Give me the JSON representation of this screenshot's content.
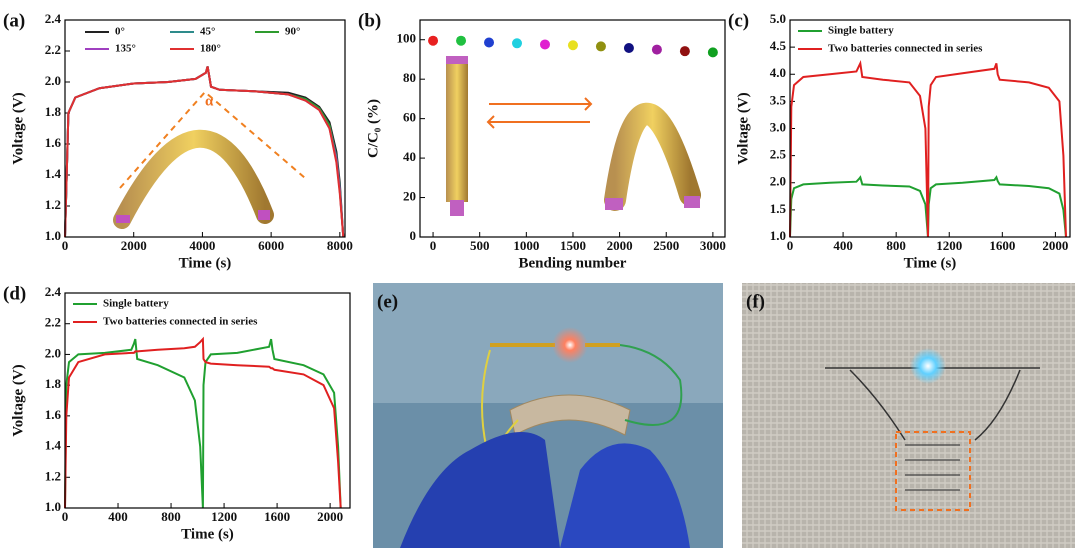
{
  "chart_data": [
    {
      "type": "line",
      "panel_label": "(a)",
      "xlabel": "Time (s)",
      "ylabel": "Voltage (V)",
      "annotation": "α",
      "x": [
        0,
        100,
        300,
        1000,
        2000,
        3000,
        3800,
        4100,
        4150,
        4250,
        4500,
        5500,
        6500,
        7000,
        7400,
        7700,
        7900,
        8000,
        8100
      ],
      "series": [
        {
          "name": "0°",
          "color": "#222222",
          "values": [
            1.0,
            1.8,
            1.9,
            1.96,
            1.99,
            2.0,
            2.02,
            2.06,
            2.1,
            1.97,
            1.95,
            1.94,
            1.93,
            1.9,
            1.84,
            1.74,
            1.55,
            1.35,
            1.0
          ]
        },
        {
          "name": "45°",
          "color": "#2e8b8b",
          "values": [
            1.0,
            1.8,
            1.9,
            1.96,
            1.99,
            2.0,
            2.02,
            2.06,
            2.1,
            1.97,
            1.95,
            1.94,
            1.92,
            1.89,
            1.83,
            1.72,
            1.52,
            1.32,
            1.0
          ]
        },
        {
          "name": "90°",
          "color": "#2e9b2e",
          "values": [
            1.0,
            1.8,
            1.9,
            1.96,
            1.99,
            2.0,
            2.02,
            2.06,
            2.1,
            1.97,
            1.95,
            1.94,
            1.92,
            1.89,
            1.83,
            1.72,
            1.5,
            1.3,
            1.0
          ]
        },
        {
          "name": "135°",
          "color": "#a040c0",
          "values": [
            1.0,
            1.8,
            1.9,
            1.96,
            1.99,
            2.0,
            2.02,
            2.06,
            2.1,
            1.97,
            1.95,
            1.94,
            1.92,
            1.88,
            1.82,
            1.7,
            1.5,
            1.3,
            1.0
          ]
        },
        {
          "name": "180°",
          "color": "#e03030",
          "values": [
            1.0,
            1.8,
            1.9,
            1.96,
            1.99,
            2.0,
            2.02,
            2.06,
            2.1,
            1.97,
            1.95,
            1.94,
            1.92,
            1.88,
            1.82,
            1.7,
            1.48,
            1.28,
            1.0
          ]
        }
      ],
      "xlim": [
        0,
        8150
      ],
      "xticks": [
        0,
        2000,
        4000,
        6000,
        8000
      ],
      "ylim": [
        1.0,
        2.4
      ],
      "yticks": [
        {
          "value": 1.0,
          "label": "1.0"
        },
        1.2,
        1.4,
        1.6,
        1.8,
        {
          "value": 2.0,
          "label": "2.0"
        },
        2.2,
        2.4
      ],
      "legend": "upper",
      "legend_columns": 3
    },
    {
      "type": "scatter",
      "panel_label": "(b)",
      "xlabel": "Bending number",
      "ylabel": "C/C₀ (%)",
      "x": [
        0,
        300,
        600,
        900,
        1200,
        1500,
        1800,
        2100,
        2400,
        2700,
        3000
      ],
      "values": [
        99.5,
        99.5,
        98.6,
        98.2,
        97.6,
        97.2,
        96.6,
        95.8,
        95,
        94.2,
        93.6
      ],
      "colors": [
        "#e82020",
        "#20c040",
        "#2040d0",
        "#20d0e0",
        "#e020d0",
        "#e8e020",
        "#909010",
        "#101080",
        "#a020a0",
        "#901010",
        "#10a020"
      ],
      "xlim": [
        -140,
        3130
      ],
      "xticks": [
        0,
        500,
        1000,
        1500,
        2000,
        2500,
        3000
      ],
      "ylim": [
        0,
        110
      ],
      "yticks": [
        0,
        20,
        40,
        60,
        80,
        100
      ]
    },
    {
      "type": "line",
      "panel_label": "(c)",
      "xlabel": "Time (s)",
      "ylabel": "Voltage (V)",
      "x": [
        0,
        10,
        30,
        100,
        300,
        500,
        520,
        530,
        545,
        700,
        900,
        980,
        1020,
        1040,
        1045,
        1060,
        1100,
        1300,
        1540,
        1555,
        1565,
        1580,
        1800,
        1950,
        2030,
        2060,
        2080
      ],
      "series": [
        {
          "name": "Single battery",
          "color": "#20a030",
          "values": [
            1.0,
            1.7,
            1.9,
            1.97,
            2.0,
            2.02,
            2.07,
            2.1,
            1.97,
            1.95,
            1.93,
            1.85,
            1.6,
            1.0,
            1.6,
            1.9,
            1.97,
            2.0,
            2.05,
            2.1,
            2.03,
            1.97,
            1.94,
            1.9,
            1.8,
            1.5,
            1.0
          ]
        },
        {
          "name": "Two batteries connected in series",
          "color": "#e02020",
          "values": [
            1.0,
            3.4,
            3.8,
            3.95,
            4.0,
            4.05,
            4.15,
            4.2,
            3.95,
            3.9,
            3.85,
            3.6,
            3.0,
            1.0,
            3.4,
            3.8,
            3.95,
            4.02,
            4.1,
            4.2,
            4.0,
            3.9,
            3.85,
            3.75,
            3.5,
            2.5,
            1.0
          ]
        }
      ],
      "xlim": [
        0,
        2110
      ],
      "xticks": [
        0,
        400,
        800,
        1200,
        1600,
        2000
      ],
      "ylim": [
        1.0,
        5.0
      ],
      "yticks": [
        {
          "value": 1.0,
          "label": "1.0"
        },
        1.5,
        {
          "value": 2.0,
          "label": "2.0"
        },
        2.5,
        {
          "value": 3.0,
          "label": "3.0"
        },
        3.5,
        {
          "value": 4.0,
          "label": "4.0"
        },
        4.5,
        {
          "value": 5.0,
          "label": "5.0"
        }
      ],
      "legend": "upper left",
      "legend_columns": 1
    },
    {
      "type": "line",
      "panel_label": "(d)",
      "xlabel": "Time (s)",
      "ylabel": "Voltage (V)",
      "x": [
        0,
        10,
        30,
        100,
        300,
        500,
        520,
        530,
        545,
        700,
        900,
        980,
        1020,
        1040,
        1045,
        1060,
        1100,
        1300,
        1540,
        1555,
        1565,
        1580,
        1800,
        1950,
        2030,
        2060,
        2080
      ],
      "series": [
        {
          "name": "Single battery",
          "color": "#20a030",
          "values": [
            1.0,
            1.8,
            1.95,
            2.0,
            2.01,
            2.03,
            2.07,
            2.1,
            1.97,
            1.93,
            1.85,
            1.7,
            1.4,
            1.0,
            1.8,
            1.95,
            2.0,
            2.01,
            2.05,
            2.1,
            2.03,
            1.97,
            1.93,
            1.87,
            1.75,
            1.4,
            1.0
          ]
        },
        {
          "name": "Two batteries connected in series",
          "color": "#e02020",
          "values": [
            1.0,
            1.6,
            1.85,
            1.95,
            2.0,
            2.01,
            2.01,
            2.02,
            2.02,
            2.03,
            2.04,
            2.05,
            2.08,
            2.1,
            1.97,
            1.95,
            1.94,
            1.93,
            1.92,
            1.91,
            1.91,
            1.9,
            1.87,
            1.8,
            1.65,
            1.3,
            1.0
          ]
        }
      ],
      "xlim": [
        0,
        2150
      ],
      "xticks": [
        0,
        400,
        800,
        1200,
        1600,
        2000
      ],
      "ylim": [
        1.0,
        2.4
      ],
      "yticks": [
        {
          "value": 1.0,
          "label": "1.0"
        },
        1.2,
        1.4,
        1.6,
        1.8,
        {
          "value": 2.0,
          "label": "2.0"
        },
        2.2,
        2.4
      ],
      "legend": "upper left",
      "legend_columns": 1
    }
  ],
  "photos": [
    {
      "label": "(e)"
    },
    {
      "label": "(f)"
    }
  ]
}
